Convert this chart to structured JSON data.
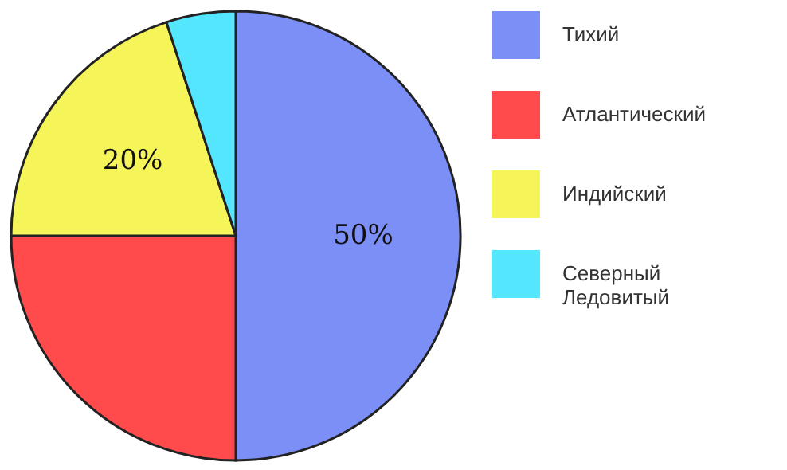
{
  "chart_data": {
    "type": "pie",
    "categories": [
      "Тихий",
      "Атлантический",
      "Индийский",
      "Северный Ледовитый"
    ],
    "values": [
      50,
      25,
      20,
      5
    ],
    "colors": [
      "#7b8ff7",
      "#ff4b4b",
      "#f5f55a",
      "#55e6ff"
    ],
    "value_labels": [
      "50%",
      null,
      "20%",
      null
    ],
    "legend": "right"
  }
}
